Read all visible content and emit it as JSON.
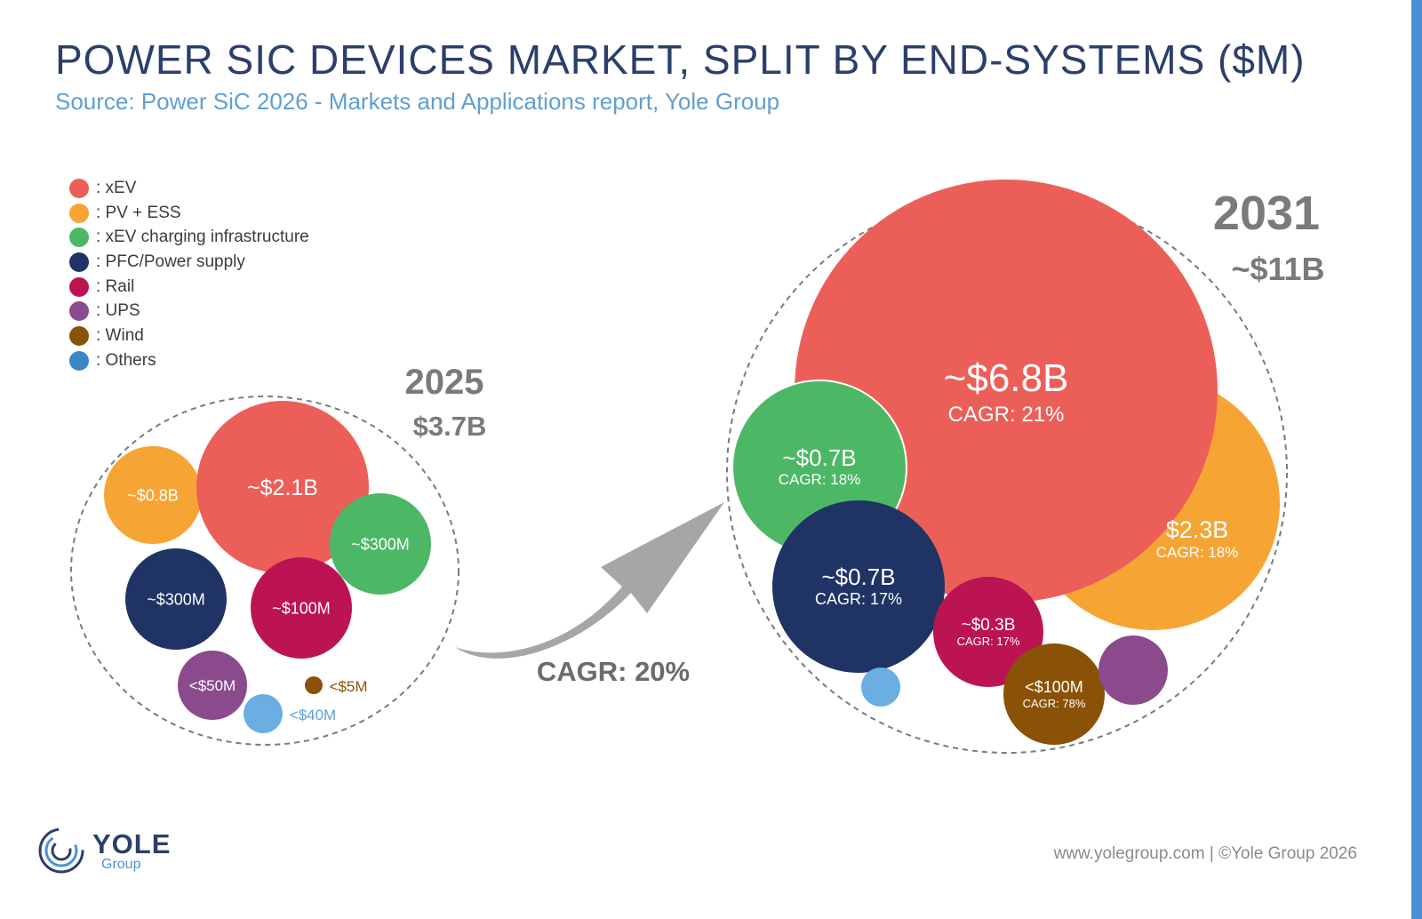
{
  "title": "POWER SIC DEVICES MARKET, SPLIT BY END-SYSTEMS ($M)",
  "subtitle": "Source: Power SiC 2026 - Markets and Applications report, Yole Group",
  "footer": {
    "url": "www.yolegroup.com | ©Yole Group 2026",
    "logo_name": "YOLE",
    "logo_sub": "Group"
  },
  "chart_data": {
    "type": "bubble",
    "legend": [
      {
        "label": ": xEV",
        "color": "#ec5f59"
      },
      {
        "label": ": PV + ESS",
        "color": "#f6a535"
      },
      {
        "label": ": xEV charging infrastructure",
        "color": "#4cb866"
      },
      {
        "label": ": PFC/Power supply",
        "color": "#1f3364"
      },
      {
        "label": ": Rail",
        "color": "#bc1452"
      },
      {
        "label": ": UPS",
        "color": "#8a4a8c"
      },
      {
        "label": ": Wind",
        "color": "#8a5206"
      },
      {
        "label": ": Others",
        "color": "#3a86c8"
      }
    ],
    "growth_label": "CAGR: 20%",
    "years": [
      {
        "year": "2025",
        "total": "$3.7B",
        "segments": [
          {
            "segment": "PV + ESS",
            "label": "~$0.8B",
            "color": "#f6a535"
          },
          {
            "segment": "xEV",
            "label": "~$2.1B",
            "color": "#ec5f59"
          },
          {
            "segment": "xEV charging infrastructure",
            "label": "~$300M",
            "color": "#4cb866"
          },
          {
            "segment": "PFC/Power supply",
            "label": "~$300M",
            "color": "#1f3364"
          },
          {
            "segment": "Rail",
            "label": "~$100M",
            "color": "#bc1452"
          },
          {
            "segment": "UPS",
            "label": "<$50M",
            "color": "#8a4a8c"
          },
          {
            "segment": "Others",
            "label": "<$40M",
            "color": "#6aaee2",
            "label_color": "#5f9fd3"
          },
          {
            "segment": "Wind",
            "label": "<$5M",
            "color": "#8a5206",
            "label_color": "#8a5206"
          }
        ]
      },
      {
        "year": "2031",
        "total": "~$11B",
        "segments": [
          {
            "segment": "PV + ESS",
            "label": "$2.3B",
            "cagr": "CAGR: 18%",
            "color": "#f6a535"
          },
          {
            "segment": "xEV",
            "label": "~$6.8B",
            "cagr": "CAGR: 21%",
            "color": "#ec5f59"
          },
          {
            "segment": "xEV charging infrastructure",
            "label": "~$0.7B",
            "cagr": "CAGR: 18%",
            "color": "#4cb866"
          },
          {
            "segment": "PFC/Power supply",
            "label": "~$0.7B",
            "cagr": "CAGR: 17%",
            "color": "#1f3364"
          },
          {
            "segment": "Rail",
            "label": "~$0.3B",
            "cagr": "CAGR: 17%",
            "color": "#bc1452"
          },
          {
            "segment": "Wind",
            "label": "<$100M",
            "cagr": "CAGR: 78%",
            "color": "#8a5206"
          },
          {
            "segment": "UPS",
            "label": "",
            "color": "#8a4a8c"
          },
          {
            "segment": "Others",
            "label": "",
            "color": "#6aaee2"
          }
        ]
      }
    ]
  }
}
